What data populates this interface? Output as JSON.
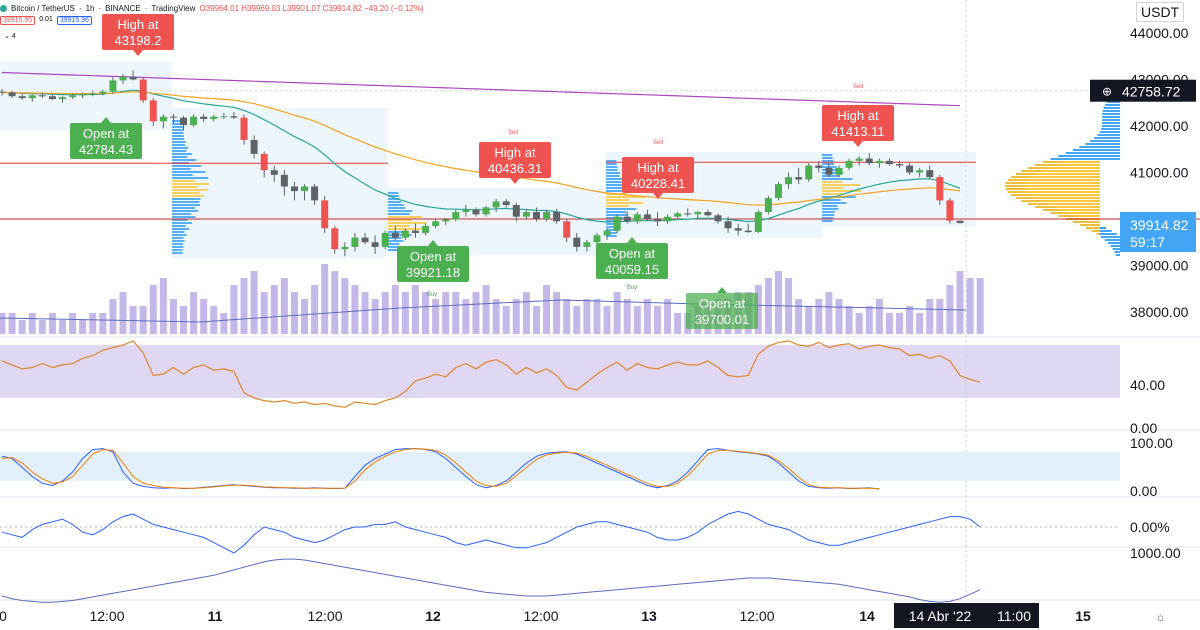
{
  "header": {
    "symbol": "Bitcoin / TetherUS",
    "interval": "1h",
    "exchange": "BINANCE",
    "platform": "TradingView",
    "ohlc": "O39964.01 H39969.03 L39901.07 C39914.82 −49.20 (−0.12%)",
    "sell_price": "39915.95",
    "spread": "0.01",
    "buy_price": "39915.96",
    "indicator_count": "4"
  },
  "currency": "USDT",
  "colors": {
    "up": "#4caf50",
    "down": "#ef5350",
    "ema_fast": "#26a69a",
    "ema_slow": "#f7a21b",
    "ma_long": "#ab47bc",
    "volume": "#c5b8e8",
    "rsi_fill": "#d8cdf0",
    "rsi_line": "#e0852a",
    "stoch_k": "#2962ff",
    "stoch_d": "#f57c00",
    "profile_blue": "#2196f3",
    "profile_yellow": "#ffc125"
  },
  "chart_data": [
    {
      "type": "candlestick",
      "pane": "price",
      "price_axis_ticks": [
        "44000.00",
        "43000.00",
        "42000.00",
        "41000.00",
        "40000.00",
        "39000.00",
        "38000.00"
      ],
      "ylim": [
        37800,
        44200
      ],
      "last_price": "39914.82",
      "countdown": "59:17",
      "crosshair_price": "42758.72",
      "time_axis_ticks": [
        "0",
        "12:00",
        "11",
        "12:00",
        "12",
        "12:00",
        "13",
        "12:00",
        "14",
        "14 Abr '22",
        "11:00",
        "15"
      ],
      "candles": [
        [
          42740,
          42800,
          42650,
          42720
        ],
        [
          42720,
          42760,
          42600,
          42640
        ],
        [
          42640,
          42700,
          42560,
          42600
        ],
        [
          42600,
          42680,
          42520,
          42660
        ],
        [
          42660,
          42720,
          42600,
          42640
        ],
        [
          42640,
          42700,
          42560,
          42580
        ],
        [
          42580,
          42640,
          42500,
          42620
        ],
        [
          42620,
          42700,
          42580,
          42660
        ],
        [
          42660,
          42720,
          42600,
          42690
        ],
        [
          42690,
          42760,
          42640,
          42700
        ],
        [
          42700,
          42780,
          42660,
          42740
        ],
        [
          42740,
          43050,
          42700,
          42980
        ],
        [
          42980,
          43120,
          42900,
          43060
        ],
        [
          43060,
          43198.2,
          42980,
          43000
        ],
        [
          43000,
          43040,
          42500,
          42550
        ],
        [
          42550,
          42600,
          42000,
          42100
        ],
        [
          42100,
          42250,
          41950,
          42200
        ],
        [
          42200,
          42260,
          42050,
          42180
        ],
        [
          42180,
          42220,
          41900,
          42020
        ],
        [
          42020,
          42250,
          41980,
          42200
        ],
        [
          42200,
          42260,
          42080,
          42150
        ],
        [
          42150,
          42240,
          42100,
          42200
        ],
        [
          42200,
          42280,
          42150,
          42210
        ],
        [
          42210,
          42300,
          42150,
          42180
        ],
        [
          42180,
          42250,
          41600,
          41700
        ],
        [
          41700,
          41800,
          41300,
          41400
        ],
        [
          41400,
          41450,
          40900,
          41050
        ],
        [
          41050,
          41150,
          40800,
          40950
        ],
        [
          40950,
          41050,
          40500,
          40700
        ],
        [
          40700,
          40800,
          40400,
          40600
        ],
        [
          40600,
          40750,
          40400,
          40700
        ],
        [
          40700,
          40750,
          40300,
          40400
        ],
        [
          40400,
          40500,
          39700,
          39800
        ],
        [
          39800,
          39850,
          39250,
          39350
        ],
        [
          39350,
          39500,
          39200,
          39400
        ],
        [
          39400,
          39700,
          39300,
          39600
        ],
        [
          39600,
          39700,
          39450,
          39500
        ],
        [
          39500,
          39650,
          39250,
          39400
        ],
        [
          39400,
          39750,
          39350,
          39700
        ],
        [
          39700,
          39850,
          39550,
          39600
        ],
        [
          39600,
          39800,
          39550,
          39750
        ],
        [
          39750,
          39900,
          39600,
          39700
        ],
        [
          39700,
          39900,
          39650,
          39850
        ],
        [
          39850,
          40000,
          39800,
          39950
        ],
        [
          39950,
          40020,
          39870,
          39990
        ],
        [
          39990,
          40200,
          39950,
          40150
        ],
        [
          40150,
          40300,
          40050,
          40200
        ],
        [
          40200,
          40250,
          40050,
          40100
        ],
        [
          40100,
          40280,
          40050,
          40250
        ],
        [
          40250,
          40436.31,
          40150,
          40380
        ],
        [
          40380,
          40430,
          40250,
          40300
        ],
        [
          40300,
          40350,
          39950,
          40050
        ],
        [
          40050,
          40200,
          40000,
          40150
        ],
        [
          40150,
          40250,
          39950,
          40000
        ],
        [
          40000,
          40200,
          39950,
          40150
        ],
        [
          40150,
          40220,
          39900,
          39950
        ],
        [
          39950,
          40000,
          39500,
          39600
        ],
        [
          39600,
          39700,
          39300,
          39400
        ],
        [
          39400,
          39550,
          39300,
          39500
        ],
        [
          39500,
          39700,
          39450,
          39650
        ],
        [
          39650,
          39800,
          39550,
          39750
        ],
        [
          39750,
          40100,
          39700,
          40050
        ],
        [
          40050,
          40150,
          39900,
          39950
        ],
        [
          39950,
          40150,
          39900,
          40100
        ],
        [
          40100,
          40200,
          39950,
          40000
        ],
        [
          40000,
          40150,
          39850,
          39950
        ],
        [
          39950,
          40100,
          39900,
          40050
        ],
        [
          40050,
          40150,
          40000,
          40120
        ],
        [
          40120,
          40228.41,
          40050,
          40100
        ],
        [
          40100,
          40180,
          40000,
          40150
        ],
        [
          40150,
          40200,
          40050,
          40080
        ],
        [
          40080,
          40120,
          39900,
          39950
        ],
        [
          39950,
          40050,
          39700,
          39800
        ],
        [
          39800,
          39900,
          39650,
          39750
        ],
        [
          39750,
          39900,
          39700,
          39720
        ],
        [
          39720,
          40200,
          39700,
          40150
        ],
        [
          40150,
          40500,
          40100,
          40450
        ],
        [
          40450,
          40800,
          40400,
          40750
        ],
        [
          40750,
          41000,
          40650,
          40900
        ],
        [
          40900,
          41100,
          40750,
          40850
        ],
        [
          40850,
          41200,
          40800,
          41150
        ],
        [
          41150,
          41250,
          41000,
          41100
        ],
        [
          41100,
          41200,
          40900,
          40950
        ],
        [
          40950,
          41150,
          40900,
          41100
        ],
        [
          41100,
          41300,
          41050,
          41250
        ],
        [
          41250,
          41350,
          41150,
          41300
        ],
        [
          41300,
          41413.11,
          41150,
          41200
        ],
        [
          41200,
          41300,
          41100,
          41250
        ],
        [
          41250,
          41300,
          41150,
          41180
        ],
        [
          41180,
          41250,
          41100,
          41150
        ],
        [
          41150,
          41200,
          40950,
          41000
        ],
        [
          41000,
          41100,
          40900,
          41050
        ],
        [
          41050,
          41150,
          40850,
          40900
        ],
        [
          40900,
          40950,
          40300,
          40400
        ],
        [
          40400,
          40450,
          39900,
          39964
        ],
        [
          39964,
          39969.03,
          39901.07,
          39914.82
        ]
      ],
      "annotations": [
        {
          "label": "High at",
          "value": "43198.2",
          "type": "high"
        },
        {
          "label": "Open at",
          "value": "42784.43",
          "type": "open"
        },
        {
          "label": "Open at",
          "value": "39921.18",
          "type": "open"
        },
        {
          "label": "High at",
          "value": "40436.31",
          "type": "high"
        },
        {
          "label": "Open at",
          "value": "40059.15",
          "type": "open"
        },
        {
          "label": "High at",
          "value": "40228.41",
          "type": "high"
        },
        {
          "label": "Open at",
          "value": "39700.01",
          "type": "open"
        },
        {
          "label": "High at",
          "value": "41413.11",
          "type": "high"
        }
      ],
      "signals": [
        "Sell",
        "Sell",
        "Buy",
        "Buy",
        "Sell"
      ],
      "volume": [
        3,
        3,
        2,
        3,
        2,
        3,
        2,
        3,
        2,
        3,
        3,
        5,
        6,
        4,
        4,
        7,
        8,
        5,
        4,
        6,
        5,
        4,
        3,
        7,
        8,
        9,
        6,
        7,
        8,
        6,
        5,
        7,
        10,
        9,
        8,
        7,
        6,
        5,
        6,
        7,
        6,
        7,
        6,
        5,
        6,
        6,
        5,
        6,
        7,
        5,
        4,
        5,
        6,
        4,
        7,
        6,
        5,
        4,
        5,
        5,
        4,
        6,
        5,
        4,
        5,
        4,
        5,
        3,
        3,
        4,
        4,
        5,
        5,
        6,
        6,
        7,
        8,
        9,
        8,
        5,
        4,
        5,
        6,
        5,
        4,
        3,
        4,
        5,
        3,
        3,
        4,
        3,
        5,
        5,
        7,
        9,
        8,
        8
      ]
    },
    {
      "type": "line",
      "pane": "rsi",
      "ylim": [
        10,
        80
      ],
      "axis_ticks": [
        "40.00",
        "0.00"
      ],
      "values": [
        58,
        55,
        52,
        53,
        56,
        53,
        55,
        56,
        60,
        62,
        66,
        68,
        70,
        73,
        64,
        47,
        48,
        53,
        48,
        53,
        55,
        51,
        52,
        50,
        34,
        30,
        28,
        27,
        28,
        26,
        27,
        25,
        26,
        24,
        23,
        27,
        26,
        25,
        28,
        30,
        35,
        43,
        45,
        48,
        46,
        53,
        56,
        52,
        57,
        59,
        55,
        48,
        53,
        49,
        52,
        47,
        38,
        36,
        42,
        48,
        53,
        57,
        51,
        56,
        53,
        52,
        55,
        57,
        55,
        55,
        58,
        53,
        47,
        46,
        47,
        63,
        69,
        72,
        73,
        70,
        69,
        72,
        68,
        70,
        71,
        67,
        69,
        70,
        68,
        67,
        62,
        63,
        60,
        62,
        58,
        47,
        44,
        42
      ]
    },
    {
      "type": "line",
      "pane": "stochastic",
      "ylim": [
        -5,
        110
      ],
      "axis_ticks": [
        "100.00",
        "0.00"
      ],
      "series": [
        {
          "values": [
            75,
            70,
            50,
            30,
            15,
            10,
            20,
            40,
            70,
            90,
            92,
            85,
            40,
            15,
            8,
            5,
            4,
            5,
            3,
            4,
            6,
            8,
            10,
            12,
            10,
            8,
            6,
            5,
            5,
            4,
            4,
            5,
            4,
            3,
            4,
            30,
            55,
            70,
            80,
            90,
            92,
            92,
            90,
            85,
            70,
            50,
            30,
            12,
            5,
            10,
            20,
            40,
            60,
            75,
            82,
            84,
            85,
            80,
            70,
            60,
            50,
            40,
            30,
            20,
            10,
            5,
            10,
            20,
            40,
            65,
            90,
            92,
            88,
            85,
            83,
            80,
            75,
            60,
            40,
            20,
            8,
            5,
            4,
            5,
            3,
            4,
            5,
            2
          ]
        },
        {
          "values": [
            70,
            72,
            60,
            40,
            25,
            15,
            18,
            30,
            55,
            80,
            90,
            88,
            60,
            30,
            15,
            10,
            6,
            5,
            4,
            4,
            5,
            7,
            9,
            11,
            11,
            9,
            7,
            6,
            5,
            5,
            4,
            4,
            4,
            4,
            4,
            20,
            45,
            62,
            75,
            85,
            90,
            92,
            91,
            88,
            78,
            60,
            40,
            20,
            10,
            8,
            15,
            32,
            50,
            68,
            78,
            82,
            84,
            82,
            75,
            65,
            55,
            45,
            35,
            25,
            15,
            8,
            8,
            15,
            32,
            55,
            80,
            88,
            88,
            86,
            84,
            81,
            77,
            65,
            48,
            28,
            12,
            6,
            5,
            5,
            4,
            4,
            4,
            3
          ]
        }
      ]
    },
    {
      "type": "line",
      "pane": "percent-oscillator",
      "axis_ticks": [
        "0.00%"
      ],
      "values": [
        -2,
        -3,
        -4,
        -1,
        1,
        2,
        3,
        1,
        -2,
        -3,
        -1,
        2,
        4,
        5,
        3,
        1,
        0,
        -1,
        -2,
        -3,
        -4,
        -6,
        -8,
        -10,
        -7,
        -3,
        0,
        -1,
        -2,
        -4,
        -5,
        -6,
        -5,
        -3,
        -1,
        0,
        0,
        1,
        1,
        2,
        0,
        -1,
        -2,
        -3,
        -4,
        -6,
        -7,
        -6,
        -5,
        -6,
        -7,
        -8,
        -8,
        -7,
        -6,
        -4,
        -2,
        0,
        1,
        2,
        2,
        1,
        0,
        -1,
        -2,
        -4,
        -5,
        -5,
        -4,
        -2,
        1,
        3,
        5,
        6,
        5,
        3,
        1,
        0,
        -1,
        -3,
        -5,
        -6,
        -7,
        -7,
        -6,
        -5,
        -4,
        -3,
        -2,
        -1,
        0,
        1,
        2,
        3,
        4,
        4,
        3,
        0
      ]
    },
    {
      "type": "line",
      "pane": "bottom",
      "axis_ticks": [
        "1000.00"
      ],
      "values": [
        -2,
        -2.3,
        -2.5,
        -2.6,
        -2.7,
        -2.7,
        -2.6,
        -2.5,
        -2.3,
        -2.1,
        -1.9,
        -1.7,
        -1.5,
        -1.3,
        -1.1,
        -0.9,
        -0.7,
        -0.5,
        -0.3,
        -0.1,
        0.1,
        0.3,
        0.6,
        0.9,
        1.2,
        1.5,
        1.8,
        2.0,
        2.1,
        2.1,
        2.0,
        1.8,
        1.6,
        1.4,
        1.2,
        1.0,
        0.8,
        0.6,
        0.4,
        0.2,
        0.0,
        -0.2,
        -0.4,
        -0.6,
        -0.8,
        -1.0,
        -1.2,
        -1.4,
        -1.6,
        -1.7,
        -1.8,
        -1.9,
        -2.0,
        -2.0,
        -2.0,
        -1.9,
        -1.8,
        -1.7,
        -1.6,
        -1.5,
        -1.4,
        -1.3,
        -1.2,
        -1.1,
        -1.0,
        -0.9,
        -0.8,
        -0.7,
        -0.6,
        -0.5,
        -0.4,
        -0.3,
        -0.2,
        -0.1,
        0.0,
        0.0,
        0.0,
        -0.1,
        -0.2,
        -0.3,
        -0.4,
        -0.5,
        -0.6,
        -0.7,
        -0.9,
        -1.1,
        -1.3,
        -1.5,
        -1.7,
        -1.9,
        -2.1,
        -2.4,
        -2.6,
        -2.7,
        -2.6,
        -2.3,
        -1.8,
        -1.3
      ]
    }
  ]
}
